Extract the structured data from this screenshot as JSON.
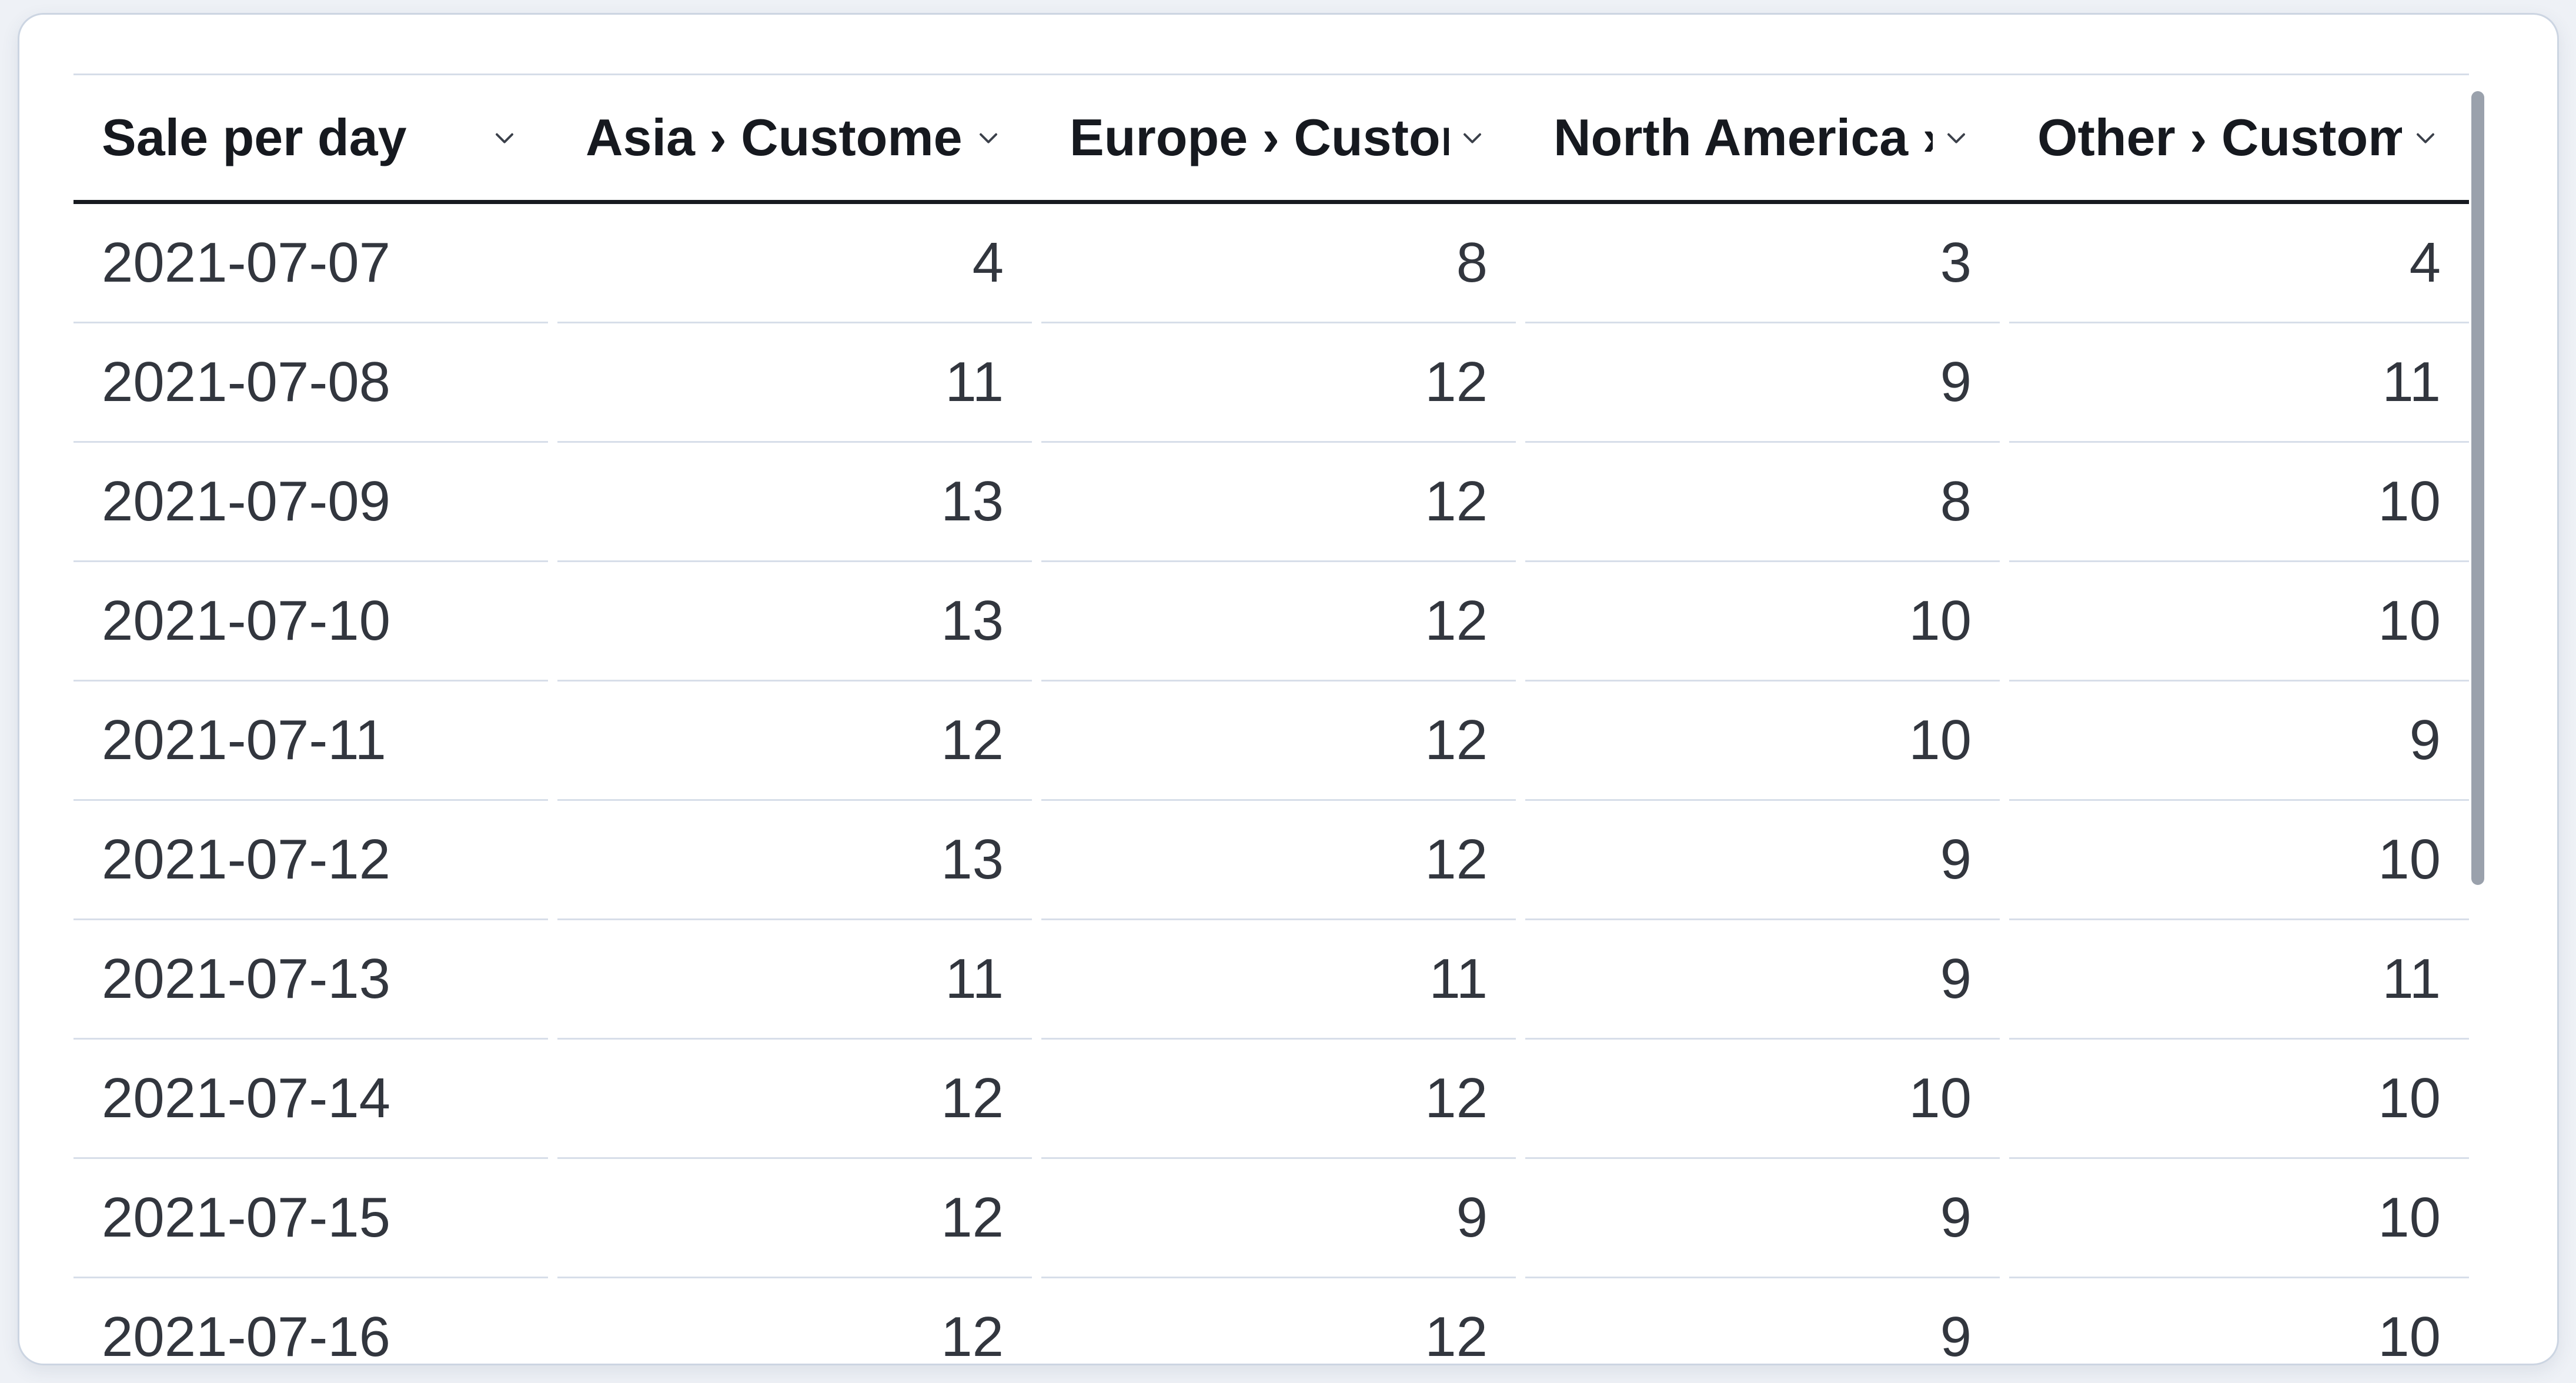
{
  "panel": {
    "type": "datatable"
  },
  "table": {
    "columns": [
      {
        "label": "Sale per day",
        "align": "left"
      },
      {
        "label": "Asia › Customers",
        "align": "right"
      },
      {
        "label": "Europe › Customers",
        "align": "right"
      },
      {
        "label": "North America › Customers",
        "align": "right"
      },
      {
        "label": "Other › Customers",
        "align": "right"
      }
    ],
    "rows": [
      [
        "2021-07-07",
        "4",
        "8",
        "3",
        "4"
      ],
      [
        "2021-07-08",
        "11",
        "12",
        "9",
        "11"
      ],
      [
        "2021-07-09",
        "13",
        "12",
        "8",
        "10"
      ],
      [
        "2021-07-10",
        "13",
        "12",
        "10",
        "10"
      ],
      [
        "2021-07-11",
        "12",
        "12",
        "10",
        "9"
      ],
      [
        "2021-07-12",
        "13",
        "12",
        "9",
        "10"
      ],
      [
        "2021-07-13",
        "11",
        "11",
        "9",
        "11"
      ],
      [
        "2021-07-14",
        "12",
        "12",
        "10",
        "10"
      ],
      [
        "2021-07-15",
        "12",
        "9",
        "9",
        "10"
      ],
      [
        "2021-07-16",
        "12",
        "12",
        "9",
        "10"
      ]
    ]
  },
  "icons": {
    "column_header_icon": "chevron-down"
  },
  "colors": {
    "page_background": "#eef1f6",
    "card_background": "#ffffff",
    "card_border": "#ccd5e2",
    "header_text": "#16191f",
    "header_underline": "#171a20",
    "body_text": "#32363e",
    "row_separator": "#d7dee9",
    "scrollbar_thumb": "#9aa1ac",
    "chevron_stroke": "#3b404a"
  }
}
